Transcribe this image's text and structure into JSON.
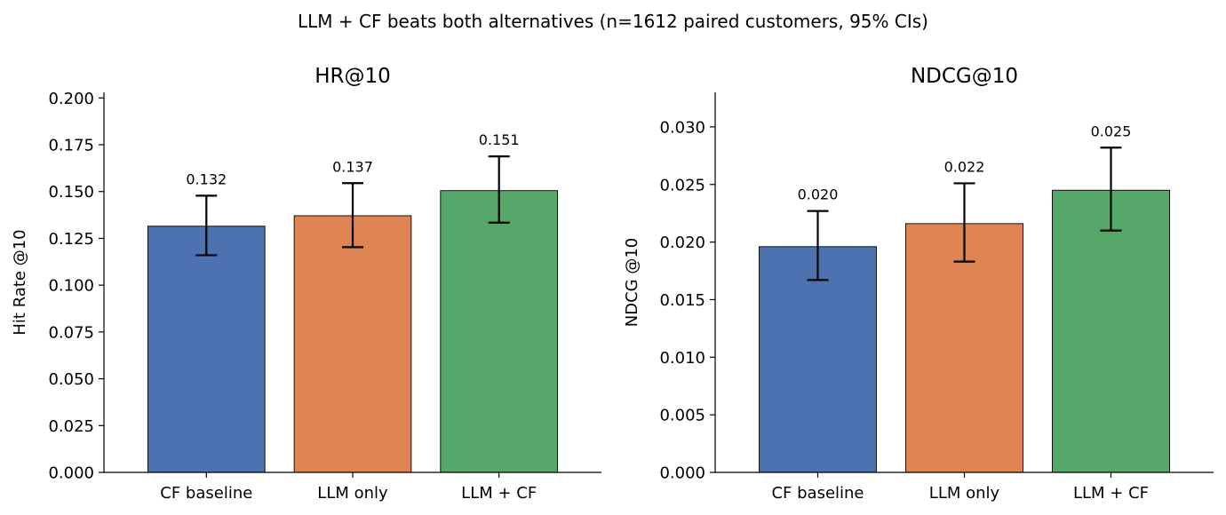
{
  "figure": {
    "title": "LLM + CF beats both alternatives (n=1612 paired customers, 95% CIs)"
  },
  "chart_data": [
    {
      "type": "bar",
      "title": "HR@10",
      "xlabel": "",
      "ylabel": "Hit Rate @10",
      "categories": [
        "CF baseline",
        "LLM only",
        "LLM + CF"
      ],
      "values": [
        0.1315,
        0.1371,
        0.1505
      ],
      "value_labels": [
        "0.132",
        "0.137",
        "0.151"
      ],
      "ci_low": [
        0.116,
        0.1203,
        0.1334
      ],
      "ci_high": [
        0.1478,
        0.1545,
        0.1688
      ],
      "colors": [
        "#4c72b0",
        "#dd8452",
        "#55a868"
      ],
      "ylim": [
        0,
        0.203
      ],
      "yticks": [
        0.0,
        0.025,
        0.05,
        0.075,
        0.1,
        0.125,
        0.15,
        0.175,
        0.2
      ],
      "ytick_labels": [
        "0.000",
        "0.025",
        "0.050",
        "0.075",
        "0.100",
        "0.125",
        "0.150",
        "0.175",
        "0.200"
      ],
      "grid": false,
      "legend": "none"
    },
    {
      "type": "bar",
      "title": "NDCG@10",
      "xlabel": "",
      "ylabel": "NDCG @10",
      "categories": [
        "CF baseline",
        "LLM only",
        "LLM + CF"
      ],
      "values": [
        0.0196,
        0.0216,
        0.0245
      ],
      "value_labels": [
        "0.020",
        "0.022",
        "0.025"
      ],
      "ci_low": [
        0.0167,
        0.0183,
        0.021
      ],
      "ci_high": [
        0.0227,
        0.0251,
        0.0282
      ],
      "colors": [
        "#4c72b0",
        "#dd8452",
        "#55a868"
      ],
      "ylim": [
        0,
        0.033
      ],
      "yticks": [
        0.0,
        0.005,
        0.01,
        0.015,
        0.02,
        0.025,
        0.03
      ],
      "ytick_labels": [
        "0.000",
        "0.005",
        "0.010",
        "0.015",
        "0.020",
        "0.025",
        "0.030"
      ],
      "grid": false,
      "legend": "none"
    }
  ]
}
